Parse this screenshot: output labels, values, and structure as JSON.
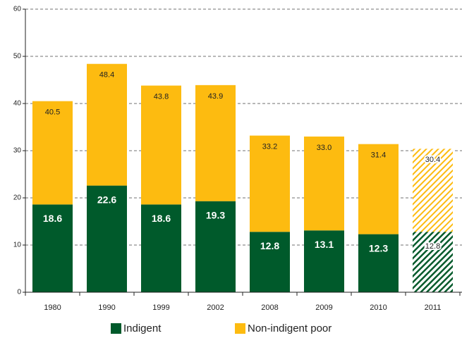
{
  "chart_data": {
    "type": "stacked_bar",
    "categories": [
      "1980",
      "1990",
      "1999",
      "2002",
      "2008",
      "2009",
      "2010",
      "2011"
    ],
    "series": [
      {
        "name": "Indigent",
        "color": "#005a2b",
        "values": [
          18.6,
          22.6,
          18.6,
          19.3,
          12.8,
          13.1,
          12.3,
          12.8
        ]
      },
      {
        "name": "Non-indigent poor",
        "color": "#fdbb10",
        "values": [
          21.9,
          25.8,
          25.2,
          24.6,
          20.4,
          19.9,
          19.1,
          17.6
        ]
      }
    ],
    "totals": [
      40.5,
      48.4,
      43.8,
      43.9,
      33.2,
      33.0,
      31.4,
      30.4
    ],
    "totals_labels": [
      "40.5",
      "48.4",
      "43.8",
      "43.9",
      "33.2",
      "33.0",
      "31.4",
      "30.4"
    ],
    "hatched": [
      false,
      false,
      false,
      false,
      false,
      false,
      false,
      true
    ],
    "ylim": [
      0,
      60
    ],
    "yticks": [
      0,
      10,
      20,
      30,
      40,
      50,
      60
    ],
    "grid": true
  }
}
